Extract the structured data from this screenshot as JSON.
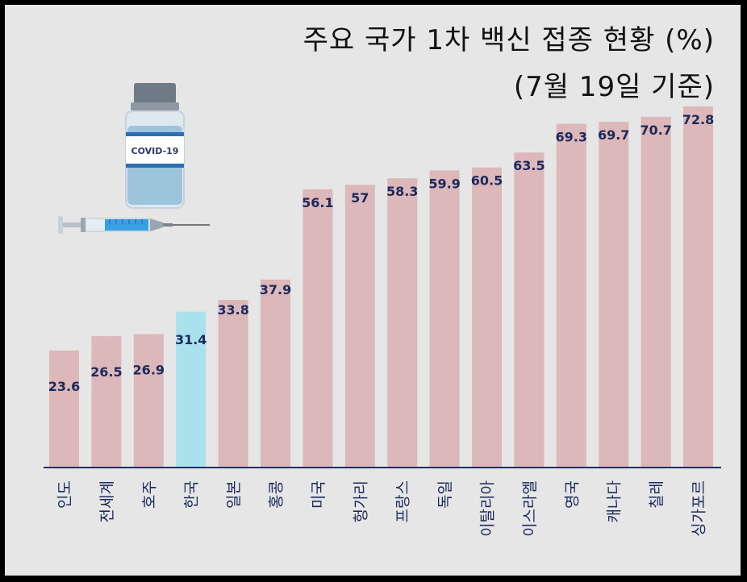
{
  "header": {
    "title": "주요 국가 1차 백신 접종 현황 (%)",
    "subtitle": "(7월 19일 기준)"
  },
  "illustration": {
    "vial_label": "COVID-19",
    "vial_icon": "vaccine-vial-icon",
    "syringe_icon": "syringe-icon"
  },
  "chart_data": {
    "type": "bar",
    "title": "주요 국가 1차 백신 접종 현황 (%)",
    "subtitle": "(7월 19일 기준)",
    "xlabel": "",
    "ylabel": "",
    "categories": [
      "인도",
      "전세계",
      "호주",
      "한국",
      "일본",
      "홍콩",
      "미국",
      "헝가리",
      "프랑스",
      "독일",
      "이탈리아",
      "이스라엘",
      "영국",
      "캐나다",
      "칠레",
      "싱가포르"
    ],
    "values": [
      23.6,
      26.5,
      26.9,
      31.4,
      33.8,
      37.9,
      56.1,
      57,
      58.3,
      59.9,
      60.5,
      63.5,
      69.3,
      69.7,
      70.7,
      72.8
    ],
    "labels": [
      "23.6",
      "26.5",
      "26.9",
      "31.4",
      "33.8",
      "37.9",
      "56.1",
      "57",
      "58.3",
      "59.9",
      "60.5",
      "63.5",
      "69.3",
      "69.7",
      "70.7",
      "72.8"
    ],
    "highlight_category": "한국",
    "ylim": [
      0,
      72.8
    ],
    "grid": false,
    "legend": "none",
    "colors": {
      "bar": "#ddb8ba",
      "highlight": "#a9e1ec",
      "label": "#1b2a5c",
      "axis": "#1f2f66"
    }
  }
}
